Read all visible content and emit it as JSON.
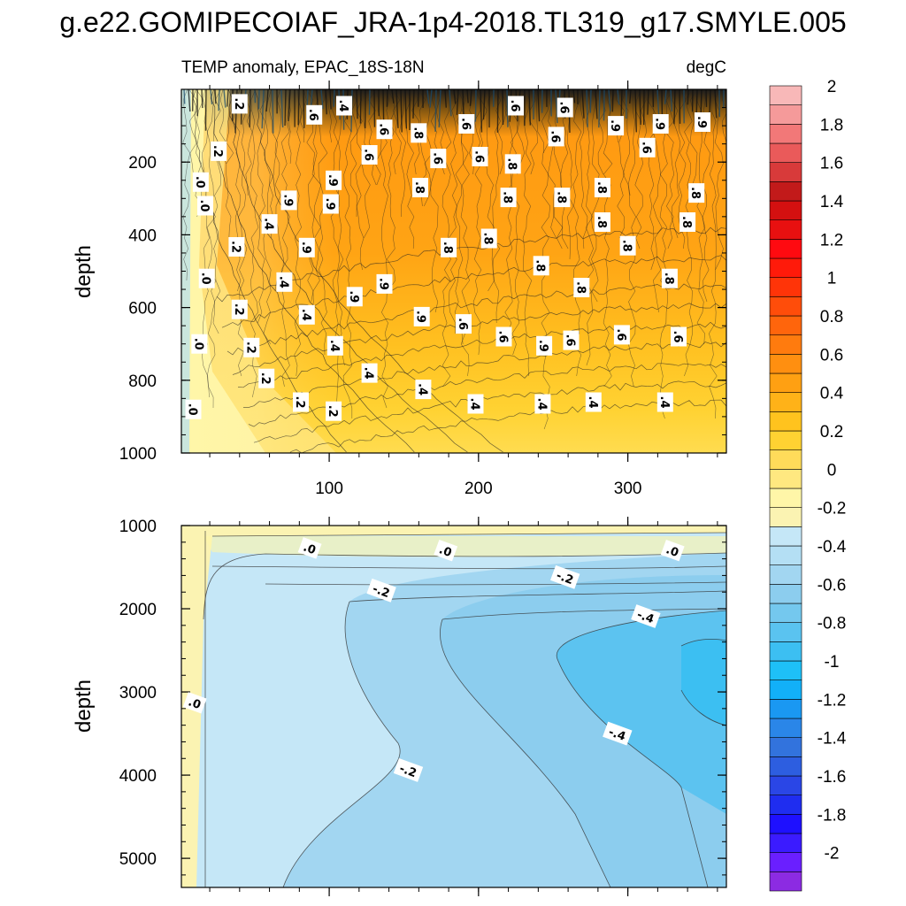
{
  "title": "g.e22.GOMIPECOIAF_JRA-1p4-2018.TL319_g17.SMYLE.005",
  "chart_data": [
    {
      "type": "heatmap",
      "panel": "upper",
      "subtitle_left": "TEMP anomaly, EPAC_18S-18N",
      "subtitle_right": "degC",
      "ylabel": "depth",
      "xlim": [
        1,
        366
      ],
      "ylim": [
        1000,
        0
      ],
      "x_ticks": [
        100,
        200,
        300
      ],
      "x_tick_labels": [
        "100",
        "200",
        "300"
      ],
      "y_ticks": [
        200,
        400,
        600,
        800,
        1000
      ],
      "y_tick_labels": [
        "200",
        "400",
        "600",
        "800",
        "1000"
      ],
      "contour_labels": [
        {
          "text": ".2",
          "x": 40,
          "y": 40
        },
        {
          "text": ".6",
          "x": 90,
          "y": 70
        },
        {
          "text": ".4",
          "x": 110,
          "y": 45
        },
        {
          "text": ".6",
          "x": 137,
          "y": 110
        },
        {
          "text": ".8",
          "x": 160,
          "y": 120
        },
        {
          "text": ".6",
          "x": 192,
          "y": 95
        },
        {
          "text": ".6",
          "x": 225,
          "y": 45
        },
        {
          "text": ".6",
          "x": 258,
          "y": 50
        },
        {
          "text": ".6",
          "x": 252,
          "y": 130
        },
        {
          "text": ".9",
          "x": 292,
          "y": 100
        },
        {
          "text": ".9",
          "x": 322,
          "y": 95
        },
        {
          "text": ".9",
          "x": 350,
          "y": 90
        },
        {
          "text": ".2",
          "x": 26,
          "y": 170
        },
        {
          "text": ".6",
          "x": 127,
          "y": 180
        },
        {
          "text": ".6",
          "x": 173,
          "y": 190
        },
        {
          "text": ".6",
          "x": 201,
          "y": 185
        },
        {
          "text": ".8",
          "x": 223,
          "y": 205
        },
        {
          "text": ".6",
          "x": 313,
          "y": 160
        },
        {
          "text": ".0",
          "x": 14,
          "y": 255
        },
        {
          "text": ".0",
          "x": 17,
          "y": 320
        },
        {
          "text": ".9",
          "x": 103,
          "y": 250
        },
        {
          "text": ".9",
          "x": 73,
          "y": 305
        },
        {
          "text": ".9",
          "x": 101,
          "y": 315
        },
        {
          "text": ".8",
          "x": 161,
          "y": 270
        },
        {
          "text": ".8",
          "x": 220,
          "y": 297
        },
        {
          "text": ".8",
          "x": 256,
          "y": 297
        },
        {
          "text": ".8",
          "x": 283,
          "y": 270
        },
        {
          "text": ".8",
          "x": 346,
          "y": 285
        },
        {
          "text": ".4",
          "x": 60,
          "y": 370
        },
        {
          "text": ".8",
          "x": 283,
          "y": 365
        },
        {
          "text": ".8",
          "x": 340,
          "y": 365
        },
        {
          "text": ".2",
          "x": 38,
          "y": 433
        },
        {
          "text": ".9",
          "x": 85,
          "y": 435
        },
        {
          "text": ".8",
          "x": 180,
          "y": 435
        },
        {
          "text": ".8",
          "x": 207,
          "y": 410
        },
        {
          "text": ".8",
          "x": 300,
          "y": 430
        },
        {
          "text": ".0",
          "x": 18,
          "y": 520
        },
        {
          "text": ".4",
          "x": 70,
          "y": 530
        },
        {
          "text": ".9",
          "x": 137,
          "y": 535
        },
        {
          "text": ".9",
          "x": 117,
          "y": 570
        },
        {
          "text": ".8",
          "x": 242,
          "y": 485
        },
        {
          "text": ".8",
          "x": 269,
          "y": 545
        },
        {
          "text": ".8",
          "x": 328,
          "y": 520
        },
        {
          "text": ".2",
          "x": 40,
          "y": 605
        },
        {
          "text": ".4",
          "x": 85,
          "y": 620
        },
        {
          "text": ".9",
          "x": 162,
          "y": 625
        },
        {
          "text": ".6",
          "x": 190,
          "y": 645
        },
        {
          "text": ".6",
          "x": 217,
          "y": 680
        },
        {
          "text": ".9",
          "x": 244,
          "y": 705
        },
        {
          "text": ".6",
          "x": 262,
          "y": 690
        },
        {
          "text": ".6",
          "x": 296,
          "y": 675
        },
        {
          "text": ".6",
          "x": 334,
          "y": 680
        },
        {
          "text": ".0",
          "x": 13,
          "y": 700
        },
        {
          "text": ".2",
          "x": 48,
          "y": 710
        },
        {
          "text": ".4",
          "x": 104,
          "y": 705
        },
        {
          "text": ".4",
          "x": 127,
          "y": 780
        },
        {
          "text": ".2",
          "x": 58,
          "y": 795
        },
        {
          "text": ".4",
          "x": 163,
          "y": 825
        },
        {
          "text": ".2",
          "x": 81,
          "y": 860
        },
        {
          "text": ".2",
          "x": 103,
          "y": 885
        },
        {
          "text": ".4",
          "x": 198,
          "y": 865
        },
        {
          "text": ".4",
          "x": 243,
          "y": 865
        },
        {
          "text": ".4",
          "x": 277,
          "y": 860
        },
        {
          "text": ".4",
          "x": 325,
          "y": 860
        },
        {
          "text": ".0",
          "x": 9,
          "y": 880
        }
      ]
    },
    {
      "type": "heatmap",
      "panel": "lower",
      "ylabel": "depth",
      "xlim": [
        1,
        366
      ],
      "ylim": [
        5350,
        1000
      ],
      "y_ticks": [
        1000,
        2000,
        3000,
        4000,
        5000
      ],
      "y_tick_labels": [
        "1000",
        "2000",
        "3000",
        "4000",
        "5000"
      ],
      "contour_labels": [
        {
          "text": ".0",
          "x": 87,
          "y": 1270
        },
        {
          "text": ".0",
          "x": 178,
          "y": 1300
        },
        {
          "text": ".0",
          "x": 330,
          "y": 1300
        },
        {
          "text": "-.2",
          "x": 135,
          "y": 1780
        },
        {
          "text": "-.2",
          "x": 258,
          "y": 1620
        },
        {
          "text": "-.4",
          "x": 312,
          "y": 2090
        },
        {
          "text": ".0",
          "x": 10,
          "y": 3130
        },
        {
          "text": "-.4",
          "x": 293,
          "y": 3500
        },
        {
          "text": "-.2",
          "x": 153,
          "y": 3940
        }
      ]
    }
  ],
  "colorbar": {
    "levels": [
      -2.1,
      -2.0,
      -1.9,
      -1.8,
      -1.7,
      -1.6,
      -1.5,
      -1.4,
      -1.3,
      -1.2,
      -1.1,
      -1.0,
      -0.9,
      -0.8,
      -0.7,
      -0.6,
      -0.5,
      -0.4,
      -0.3,
      -0.2,
      -0.1,
      0.0,
      0.1,
      0.2,
      0.3,
      0.4,
      0.5,
      0.6,
      0.7,
      0.8,
      0.9,
      1.0,
      1.1,
      1.2,
      1.3,
      1.4,
      1.5,
      1.6,
      1.7,
      1.8,
      1.9,
      2.0,
      2.1,
      2.2
    ],
    "colors": [
      "#8c2be2",
      "#6a1fff",
      "#3b1bff",
      "#1e10ff",
      "#1f2df0",
      "#2a46e6",
      "#2d5ee0",
      "#3273dd",
      "#2a86e8",
      "#1a98f2",
      "#12b0f8",
      "#1ec0f7",
      "#3cbff2",
      "#5ac3f0",
      "#74c8ee",
      "#8ccdee",
      "#a2d6f1",
      "#b4dff4",
      "#c5e7f7",
      "#fbf3b2",
      "#fff6a8",
      "#ffe880",
      "#ffdb5a",
      "#ffd232",
      "#ffc31e",
      "#ffb218",
      "#ffa012",
      "#ff8f10",
      "#ff7b0e",
      "#ff650c",
      "#ff4d0a",
      "#ff3408",
      "#ff1a0a",
      "#ff0a10",
      "#e81010",
      "#d41010",
      "#c21a1a",
      "#d83a3a",
      "#ea5a5a",
      "#f27878",
      "#f59a9a",
      "#f8b8b8"
    ],
    "tick_labels": [
      {
        "value": 2.0,
        "label": "2"
      },
      {
        "value": 1.8,
        "label": "1.8"
      },
      {
        "value": 1.6,
        "label": "1.6"
      },
      {
        "value": 1.4,
        "label": "1.4"
      },
      {
        "value": 1.2,
        "label": "1.2"
      },
      {
        "value": 1.0,
        "label": "1"
      },
      {
        "value": 0.8,
        "label": "0.8"
      },
      {
        "value": 0.6,
        "label": "0.6"
      },
      {
        "value": 0.4,
        "label": "0.4"
      },
      {
        "value": 0.2,
        "label": "0.2"
      },
      {
        "value": 0.0,
        "label": "0"
      },
      {
        "value": -0.2,
        "label": "-0.2"
      },
      {
        "value": -0.4,
        "label": "-0.4"
      },
      {
        "value": -0.6,
        "label": "-0.6"
      },
      {
        "value": -0.8,
        "label": "-0.8"
      },
      {
        "value": -1.0,
        "label": "-1"
      },
      {
        "value": -1.2,
        "label": "-1.2"
      },
      {
        "value": -1.4,
        "label": "-1.4"
      },
      {
        "value": -1.6,
        "label": "-1.6"
      },
      {
        "value": -1.8,
        "label": "-1.8"
      },
      {
        "value": -2.0,
        "label": "-2"
      }
    ]
  }
}
